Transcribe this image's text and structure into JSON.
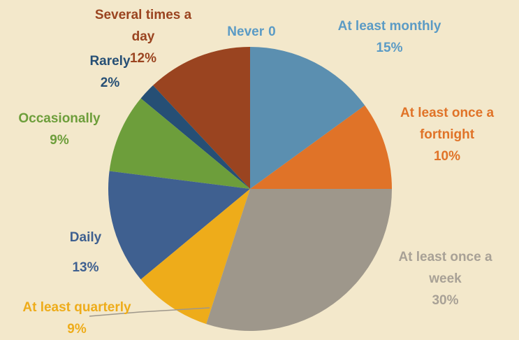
{
  "chart_data": {
    "type": "pie",
    "categories": [
      "Never",
      "At least monthly",
      "At least once a fortnight",
      "At least once a week",
      "At least quarterly",
      "Daily",
      "Occasionally",
      "Rarely",
      "Several times a day"
    ],
    "values": [
      0,
      15,
      10,
      30,
      9,
      13,
      9,
      2,
      12
    ],
    "value_labels": [
      "0",
      "15%",
      "10%",
      "30%",
      "9%",
      "13%",
      "9%",
      "2%",
      "12%"
    ],
    "colors": [
      "#5b8fb0",
      "#5b8fb0",
      "#e07328",
      "#9e978b",
      "#eeac1a",
      "#3f6090",
      "#6d9e3b",
      "#264f75",
      "#9a4420"
    ],
    "label_colors": [
      "#5b9bc5",
      "#5b9bc5",
      "#e07328",
      "#a8a196",
      "#eeac1a",
      "#3f6090",
      "#6d9e3b",
      "#264f75",
      "#9a4420"
    ]
  }
}
